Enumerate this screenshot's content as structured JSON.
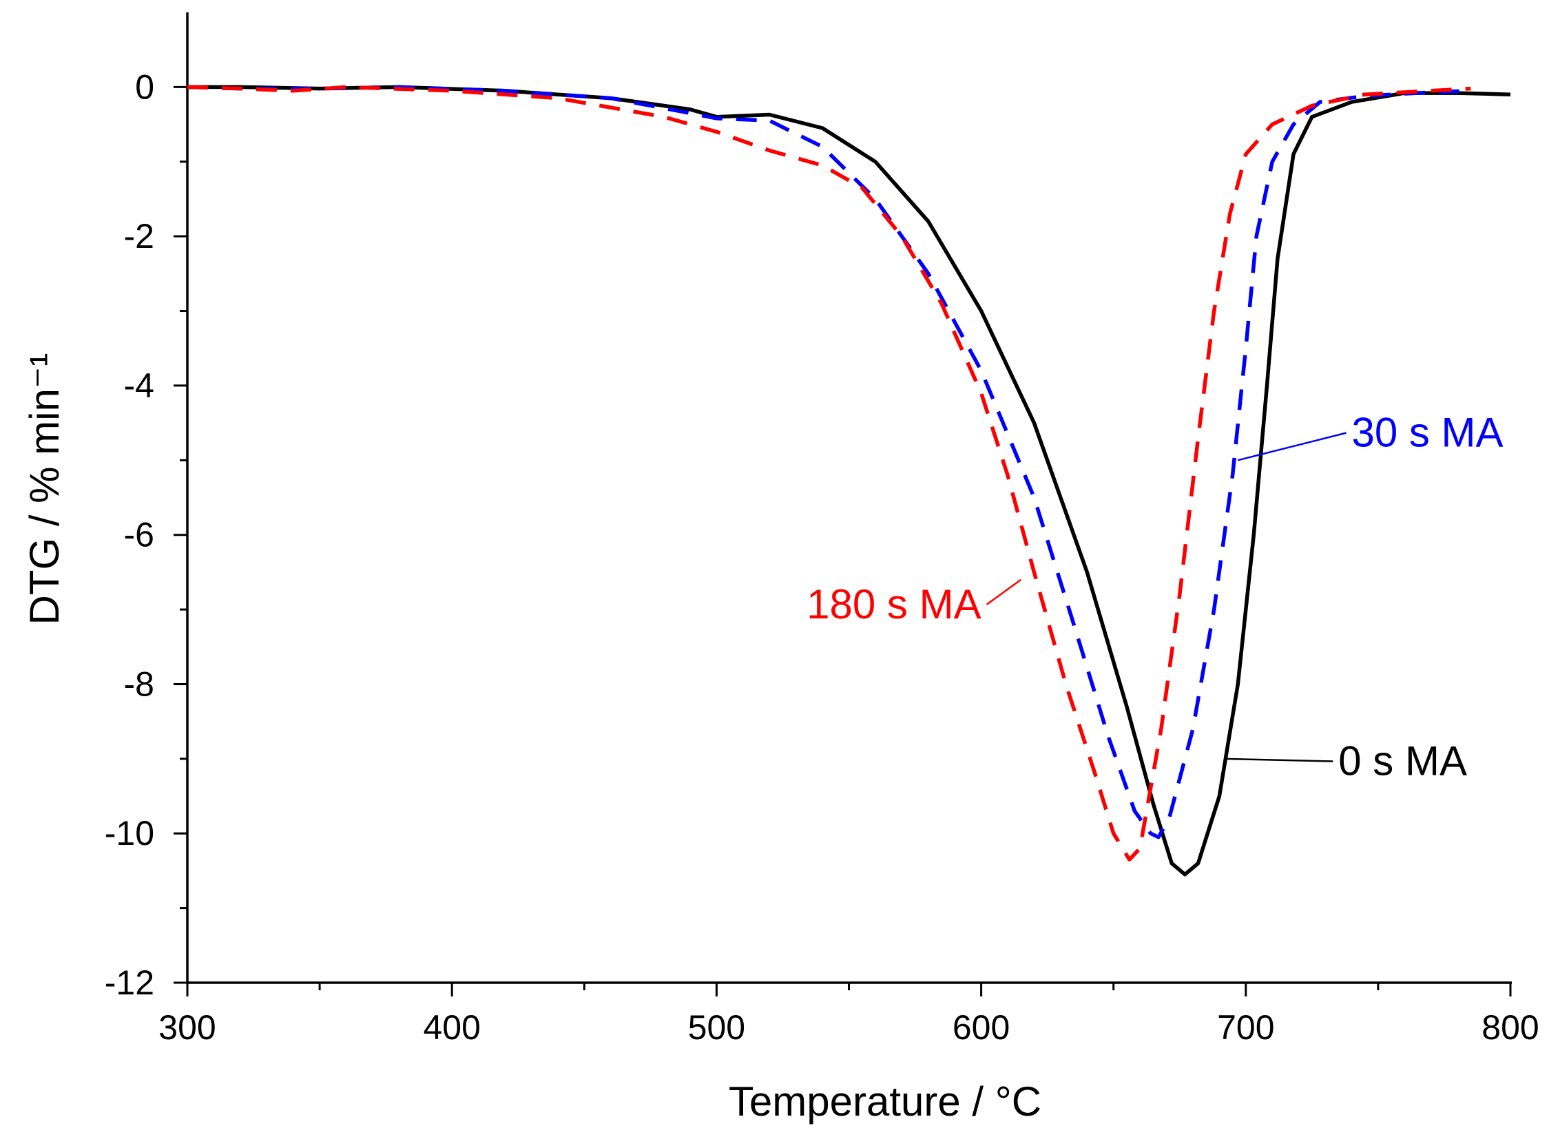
{
  "chart_data": {
    "type": "line",
    "title": "",
    "xlabel": "Temperature / °C",
    "ylabel": "DTG / % min⁻¹",
    "xlim": [
      300,
      800
    ],
    "ylim": [
      -12,
      1
    ],
    "x_ticks": [
      300,
      400,
      500,
      600,
      700,
      800
    ],
    "x_minor_ticks": [
      350,
      450,
      550,
      650,
      750
    ],
    "y_ticks": [
      0,
      -2,
      -4,
      -6,
      -8,
      -10,
      -12
    ],
    "y_minor_ticks": [
      -1,
      -3,
      -5,
      -7,
      -9,
      -11
    ],
    "grid": false,
    "series": [
      {
        "name": "0 s MA",
        "color": "#000000",
        "dash": "solid",
        "label_anchor": [
          692,
          -9.0
        ],
        "label_pos": [
          735,
          -9.2
        ],
        "points": [
          [
            300,
            0
          ],
          [
            320,
            0.0
          ],
          [
            350,
            -0.02
          ],
          [
            380,
            0.0
          ],
          [
            420,
            -0.05
          ],
          [
            460,
            -0.15
          ],
          [
            490,
            -0.3
          ],
          [
            500,
            -0.4
          ],
          [
            520,
            -0.37
          ],
          [
            540,
            -0.55
          ],
          [
            560,
            -1.0
          ],
          [
            580,
            -1.8
          ],
          [
            600,
            -3.0
          ],
          [
            620,
            -4.5
          ],
          [
            640,
            -6.5
          ],
          [
            655,
            -8.3
          ],
          [
            665,
            -9.6
          ],
          [
            672,
            -10.4
          ],
          [
            677,
            -10.55
          ],
          [
            682,
            -10.4
          ],
          [
            690,
            -9.5
          ],
          [
            697,
            -8.0
          ],
          [
            703,
            -6.0
          ],
          [
            708,
            -4.0
          ],
          [
            712,
            -2.3
          ],
          [
            718,
            -0.9
          ],
          [
            725,
            -0.4
          ],
          [
            740,
            -0.2
          ],
          [
            760,
            -0.08
          ],
          [
            780,
            -0.08
          ],
          [
            800,
            -0.1
          ]
        ]
      },
      {
        "name": "30 s MA",
        "color": "#0000ff",
        "dash": "dashed",
        "label_anchor": [
          697,
          -5.0
        ],
        "label_pos": [
          740,
          -4.8
        ],
        "points": [
          [
            300,
            0
          ],
          [
            320,
            -0.02
          ],
          [
            350,
            -0.02
          ],
          [
            380,
            0.0
          ],
          [
            420,
            -0.05
          ],
          [
            460,
            -0.15
          ],
          [
            490,
            -0.35
          ],
          [
            500,
            -0.42
          ],
          [
            520,
            -0.45
          ],
          [
            540,
            -0.8
          ],
          [
            560,
            -1.5
          ],
          [
            580,
            -2.5
          ],
          [
            600,
            -3.8
          ],
          [
            620,
            -5.5
          ],
          [
            635,
            -7.2
          ],
          [
            648,
            -8.7
          ],
          [
            658,
            -9.7
          ],
          [
            664,
            -10.0
          ],
          [
            667,
            -10.05
          ],
          [
            671,
            -9.8
          ],
          [
            680,
            -8.6
          ],
          [
            688,
            -7.0
          ],
          [
            695,
            -5.2
          ],
          [
            700,
            -3.5
          ],
          [
            704,
            -2.0
          ],
          [
            710,
            -1.0
          ],
          [
            718,
            -0.5
          ],
          [
            728,
            -0.2
          ],
          [
            745,
            -0.12
          ],
          [
            770,
            -0.07
          ],
          [
            785,
            -0.05
          ]
        ]
      },
      {
        "name": "180 s MA",
        "color": "#ff0000",
        "dash": "dashed",
        "label_anchor": [
          615,
          -6.6
        ],
        "label_pos": [
          600,
          -7.1
        ],
        "points": [
          [
            300,
            0
          ],
          [
            320,
            -0.02
          ],
          [
            340,
            -0.05
          ],
          [
            360,
            0.0
          ],
          [
            400,
            -0.05
          ],
          [
            440,
            -0.15
          ],
          [
            480,
            -0.4
          ],
          [
            500,
            -0.6
          ],
          [
            520,
            -0.85
          ],
          [
            540,
            -1.05
          ],
          [
            555,
            -1.35
          ],
          [
            570,
            -2.0
          ],
          [
            585,
            -2.9
          ],
          [
            600,
            -4.1
          ],
          [
            610,
            -5.2
          ],
          [
            620,
            -6.5
          ],
          [
            632,
            -8.0
          ],
          [
            643,
            -9.2
          ],
          [
            650,
            -10.0
          ],
          [
            656,
            -10.35
          ],
          [
            660,
            -10.2
          ],
          [
            663,
            -9.6
          ],
          [
            668,
            -8.6
          ],
          [
            675,
            -6.8
          ],
          [
            682,
            -4.7
          ],
          [
            688,
            -3.0
          ],
          [
            694,
            -1.7
          ],
          [
            700,
            -0.9
          ],
          [
            710,
            -0.5
          ],
          [
            725,
            -0.25
          ],
          [
            745,
            -0.1
          ],
          [
            770,
            -0.05
          ],
          [
            785,
            -0.02
          ]
        ]
      }
    ]
  }
}
